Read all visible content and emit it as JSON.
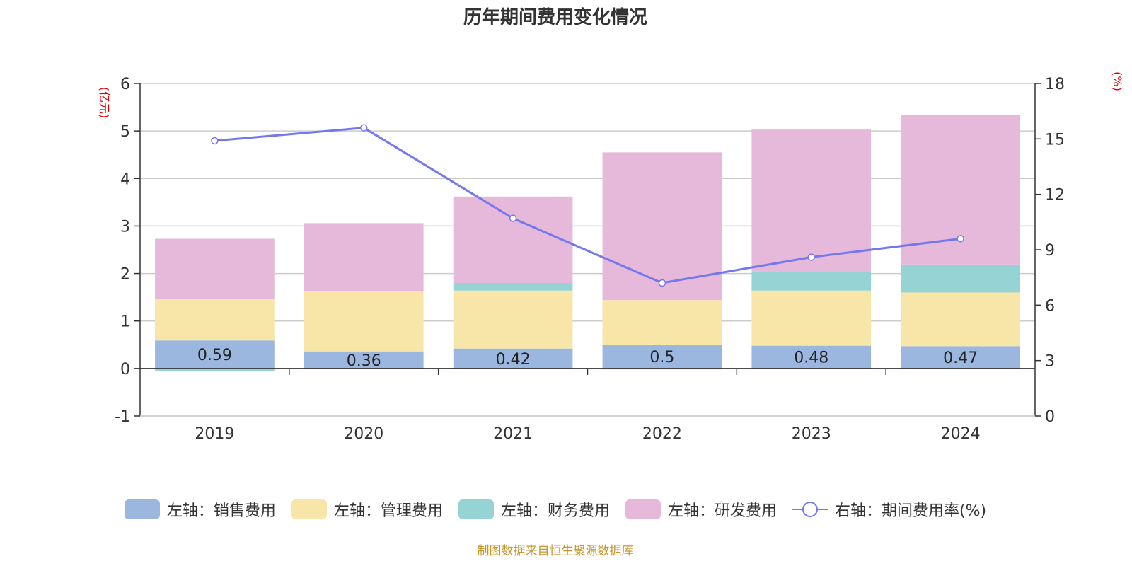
{
  "title": "历年期间费用变化情况",
  "footer": "制图数据来自恒生聚源数据库",
  "chart_data": {
    "type": "bar",
    "stacked": true,
    "categories": [
      "2019",
      "2020",
      "2021",
      "2022",
      "2023",
      "2024"
    ],
    "y_left": {
      "label": "(亿元)",
      "min": -1,
      "max": 6,
      "ticks": [
        -1,
        0,
        1,
        2,
        3,
        4,
        5,
        6
      ]
    },
    "y_right": {
      "label": "(%)",
      "min": 0,
      "max": 18,
      "ticks": [
        0,
        3,
        6,
        9,
        12,
        15,
        18
      ]
    },
    "series": [
      {
        "name": "左轴：销售费用",
        "axis": "left",
        "color": "#9bb7e0",
        "values": [
          0.59,
          0.36,
          0.42,
          0.5,
          0.48,
          0.47
        ],
        "show_labels": true
      },
      {
        "name": "左轴：管理费用",
        "axis": "left",
        "color": "#f8e6a8",
        "values": [
          0.88,
          1.27,
          1.22,
          0.94,
          1.16,
          1.13
        ]
      },
      {
        "name": "左轴：财务费用",
        "axis": "left",
        "color": "#96d3d4",
        "values": [
          -0.05,
          -0.01,
          0.16,
          -0.02,
          0.39,
          0.59
        ]
      },
      {
        "name": "左轴：研发费用",
        "axis": "left",
        "color": "#e6b8d9",
        "values": [
          1.26,
          1.43,
          1.82,
          3.11,
          3.0,
          3.15
        ]
      },
      {
        "name": "右轴：期间费用率(%)",
        "axis": "right",
        "type": "line",
        "color": "#7478ee",
        "values": [
          14.9,
          15.6,
          10.7,
          7.2,
          8.6,
          9.6
        ]
      }
    ],
    "grid": true,
    "legend_position": "bottom"
  }
}
